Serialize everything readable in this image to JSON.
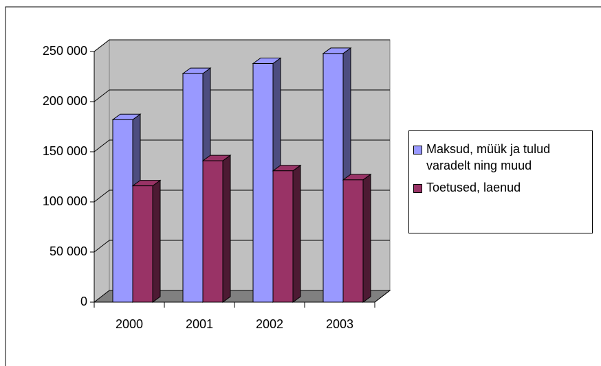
{
  "chart_data": {
    "type": "bar3d",
    "categories": [
      "2000",
      "2001",
      "2002",
      "2003"
    ],
    "series": [
      {
        "name": "Maksud, müük ja tulud varadelt ning muud",
        "color": "#9999ff",
        "values": [
          182000,
          228000,
          238000,
          248000
        ]
      },
      {
        "name": "Toetused, laenud",
        "color": "#993366",
        "values": [
          116000,
          141000,
          131000,
          122000
        ]
      }
    ],
    "ylim": [
      0,
      250000
    ],
    "yticks": [
      0,
      {
        "value": 50000,
        "label": "50 000"
      },
      {
        "value": 100000,
        "label": "100 000"
      },
      {
        "value": 150000,
        "label": "150 000"
      },
      {
        "value": 200000,
        "label": "200 000"
      },
      {
        "value": 250000,
        "label": "250 000"
      }
    ],
    "grid": true,
    "legend": "right"
  }
}
